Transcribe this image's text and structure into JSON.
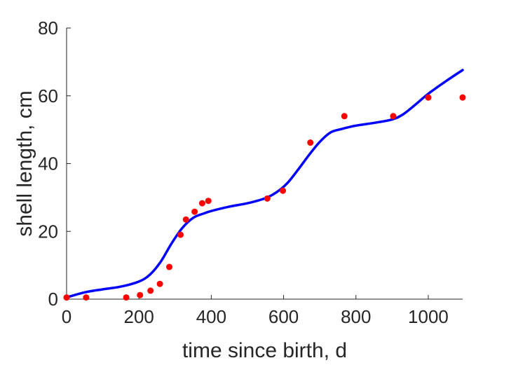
{
  "chart_data": {
    "type": "scatter",
    "title": "",
    "xlabel": "time since birth, d",
    "ylabel": "shell length, cm",
    "xlim": [
      0,
      1095
    ],
    "ylim": [
      0,
      80
    ],
    "xticks": [
      0,
      200,
      400,
      600,
      800,
      1000
    ],
    "yticks": [
      0,
      20,
      40,
      60,
      80
    ],
    "grid": false,
    "legend": "none",
    "series": [
      {
        "kind": "points",
        "color": "#ff0000",
        "x": [
          0,
          54,
          165,
          203,
          232,
          258,
          284,
          315,
          330,
          354,
          375,
          392,
          555,
          598,
          674,
          768,
          903,
          1000,
          1095
        ],
        "y": [
          0.5,
          0.5,
          0.5,
          1.2,
          2.5,
          4.5,
          9.5,
          19,
          23.5,
          25.8,
          28.3,
          29,
          29.7,
          32,
          46.2,
          54,
          54,
          59.5,
          59.5
        ]
      },
      {
        "kind": "line",
        "color": "#0000ff",
        "x": [
          0,
          50,
          100,
          150,
          200,
          230,
          260,
          290,
          320,
          350,
          380,
          400,
          450,
          500,
          550,
          580,
          610,
          640,
          670,
          700,
          730,
          760,
          800,
          850,
          900,
          930,
          960,
          1000,
          1050,
          1095
        ],
        "y": [
          0.5,
          2,
          2.9,
          3.7,
          5.2,
          7.2,
          11,
          16.4,
          21,
          24,
          25.3,
          26,
          27.3,
          28.3,
          29.8,
          31.5,
          34.2,
          38.2,
          42.5,
          46.4,
          49.2,
          50.2,
          51.2,
          52,
          53,
          54.5,
          57,
          60.6,
          64.4,
          67.6
        ]
      }
    ]
  }
}
